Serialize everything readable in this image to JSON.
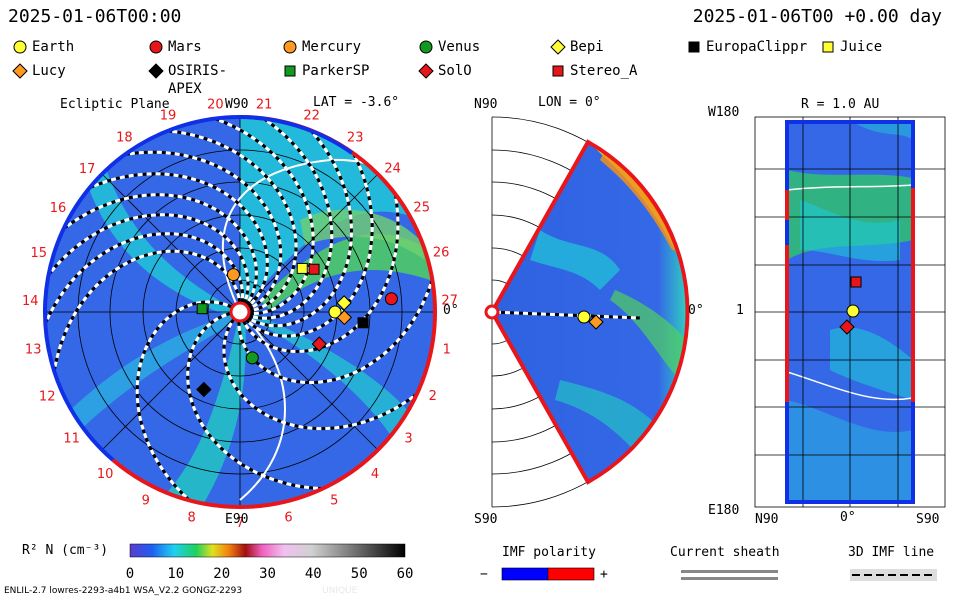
{
  "header": {
    "left_time": "2025-01-06T00:00",
    "right_time": "2025-01-06T00 +0.00 day"
  },
  "legend": [
    {
      "label": "Earth",
      "shape": "circle",
      "color": "#ffff33"
    },
    {
      "label": "Mars",
      "shape": "circle",
      "color": "#e8161b"
    },
    {
      "label": "Mercury",
      "shape": "circle",
      "color": "#ff9922"
    },
    {
      "label": "Venus",
      "shape": "circle",
      "color": "#119922"
    },
    {
      "label": "Bepi",
      "shape": "diamond",
      "color": "#ffff33"
    },
    {
      "label": "EuropaClippr",
      "shape": "square",
      "color": "#000000"
    },
    {
      "label": "Juice",
      "shape": "square",
      "color": "#ffff33"
    },
    {
      "label": "Lucy",
      "shape": "diamond",
      "color": "#ff9922"
    },
    {
      "label": "OSIRIS-APEX",
      "shape": "diamond",
      "color": "#000000"
    },
    {
      "label": "ParkerSP",
      "shape": "square",
      "color": "#119922"
    },
    {
      "label": "SolO",
      "shape": "diamond",
      "color": "#e8161b"
    },
    {
      "label": "Stereo_A",
      "shape": "square",
      "color": "#e8161b"
    }
  ],
  "panels": {
    "ecliptic": {
      "title": "Ecliptic Plane",
      "top_label": "W90",
      "lat_label": "LAT = -3.6°",
      "right_label": "0°",
      "bottom_label": "E90",
      "carrington_ticks": [
        "1",
        "2",
        "3",
        "4",
        "5",
        "6",
        "7",
        "8",
        "9",
        "10",
        "11",
        "12",
        "13",
        "14",
        "15",
        "16",
        "17",
        "18",
        "19",
        "20",
        "21",
        "22",
        "23",
        "24",
        "25",
        "26",
        "27"
      ]
    },
    "meridional": {
      "top_left": "N90",
      "lon_label": "LON = 0°",
      "right_label": "0°",
      "bottom_left": "S90"
    },
    "map": {
      "title": "R = 1.0 AU",
      "top_left": "W180",
      "mid_left": "1",
      "bottom_left": "E180",
      "x_left": "N90",
      "x_mid": "0°",
      "x_right": "S90"
    }
  },
  "colorbar": {
    "label": "R² N (cm⁻³)",
    "ticks": [
      "0",
      "10",
      "20",
      "30",
      "40",
      "50",
      "60"
    ]
  },
  "imf": {
    "title": "IMF polarity",
    "minus": "−",
    "plus": "+",
    "neg_color": "#0000ff",
    "pos_color": "#ff0000"
  },
  "sheath": {
    "title": "Current sheath"
  },
  "imf3d": {
    "title": "3D IMF line"
  },
  "footer": {
    "model": "ENLIL-2.7 lowres-2293-a4b1 WSA_V2.2 GONGZ-2293",
    "run": "UNIQUE"
  },
  "chart_data": [
    {
      "type": "heatmap",
      "title": "Ecliptic Plane",
      "subtitle": "LAT = -3.6°",
      "quantity": "R² N (cm⁻³)",
      "color_range": [
        0,
        60
      ],
      "bodies": [
        {
          "name": "Earth",
          "lon_deg": 0,
          "r_au": 1.0
        },
        {
          "name": "Mars",
          "lon_deg": 5,
          "r_au": 1.6
        },
        {
          "name": "Mercury",
          "lon_deg": 100,
          "r_au": 0.4
        },
        {
          "name": "Venus",
          "lon_deg": -75,
          "r_au": 0.5
        },
        {
          "name": "Bepi",
          "lon_deg": 5,
          "r_au": 1.1
        },
        {
          "name": "EuropaClippr",
          "lon_deg": -5,
          "r_au": 1.3
        },
        {
          "name": "Juice",
          "lon_deg": 35,
          "r_au": 0.8
        },
        {
          "name": "Lucy",
          "lon_deg": -3,
          "r_au": 1.1
        },
        {
          "name": "OSIRIS-APEX",
          "lon_deg": -115,
          "r_au": 0.9
        },
        {
          "name": "ParkerSP",
          "lon_deg": 175,
          "r_au": 0.4
        },
        {
          "name": "SolO",
          "lon_deg": -22,
          "r_au": 0.9
        },
        {
          "name": "Stereo_A",
          "lon_deg": 30,
          "r_au": 0.9
        }
      ]
    },
    {
      "type": "heatmap",
      "title": "LON = 0°",
      "lat_range_deg": [
        -60,
        60
      ],
      "quantity": "R² N (cm⁻³)"
    },
    {
      "type": "heatmap",
      "title": "R = 1.0 AU",
      "x_range": [
        "N90",
        "S90"
      ],
      "y_range": [
        "E180",
        "W180"
      ]
    }
  ]
}
